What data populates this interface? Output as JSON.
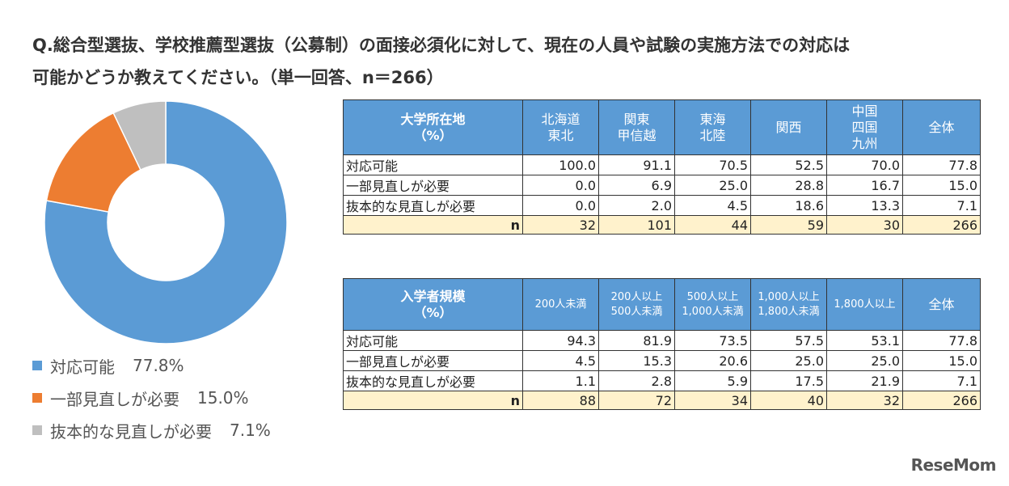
{
  "title_line1": "Q.総合型選抜、学校推薦型選抜（公募制）の面接必須化に対して、現在の人員や試験の実施方法での対応は",
  "title_line2": "可能かどうか教えてください。（単一回答、n＝266）",
  "chart_data": {
    "type": "pie",
    "donut": true,
    "labels": [
      "対応可能",
      "一部見直しが必要",
      "抜本的な見直しが必要"
    ],
    "values": [
      77.8,
      15.0,
      7.1
    ],
    "value_labels": [
      "77.8%",
      "15.0%",
      "7.1%"
    ],
    "colors": [
      "#5b9bd5",
      "#ed7d31",
      "#bfbfbf"
    ],
    "legend_position": "bottom-left"
  },
  "table1": {
    "header_label": [
      "大学所在地",
      "（%）"
    ],
    "columns": [
      [
        "北海道",
        "東北"
      ],
      [
        "関東",
        "甲信越"
      ],
      [
        "東海",
        "北陸"
      ],
      [
        "関西"
      ],
      [
        "中国",
        "四国",
        "九州"
      ],
      [
        "全体"
      ]
    ],
    "rows": [
      {
        "label": "対応可能",
        "values": [
          "100.0",
          "91.1",
          "70.5",
          "52.5",
          "70.0",
          "77.8"
        ]
      },
      {
        "label": "一部見直しが必要",
        "values": [
          "0.0",
          "6.9",
          "25.0",
          "28.8",
          "16.7",
          "15.0"
        ]
      },
      {
        "label": "抜本的な見直しが必要",
        "values": [
          "0.0",
          "2.0",
          "4.5",
          "18.6",
          "13.3",
          "7.1"
        ]
      }
    ],
    "n_row": {
      "label": "n",
      "values": [
        "32",
        "101",
        "44",
        "59",
        "30",
        "266"
      ]
    }
  },
  "table2": {
    "header_label": [
      "入学者規模",
      "（%）"
    ],
    "columns": [
      [
        "200人未満"
      ],
      [
        "200人以上",
        "500人未満"
      ],
      [
        "500人以上",
        "1,000人未満"
      ],
      [
        "1,000人以上",
        "1,800人未満"
      ],
      [
        "1,800人以上"
      ],
      [
        "全体"
      ]
    ],
    "rows": [
      {
        "label": "対応可能",
        "values": [
          "94.3",
          "81.9",
          "73.5",
          "57.5",
          "53.1",
          "77.8"
        ]
      },
      {
        "label": "一部見直しが必要",
        "values": [
          "4.5",
          "15.3",
          "20.6",
          "25.0",
          "25.0",
          "15.0"
        ]
      },
      {
        "label": "抜本的な見直しが必要",
        "values": [
          "1.1",
          "2.8",
          "5.9",
          "17.5",
          "21.9",
          "7.1"
        ]
      }
    ],
    "n_row": {
      "label": "n",
      "values": [
        "88",
        "72",
        "34",
        "40",
        "32",
        "266"
      ]
    }
  },
  "logo": "ReseMom"
}
